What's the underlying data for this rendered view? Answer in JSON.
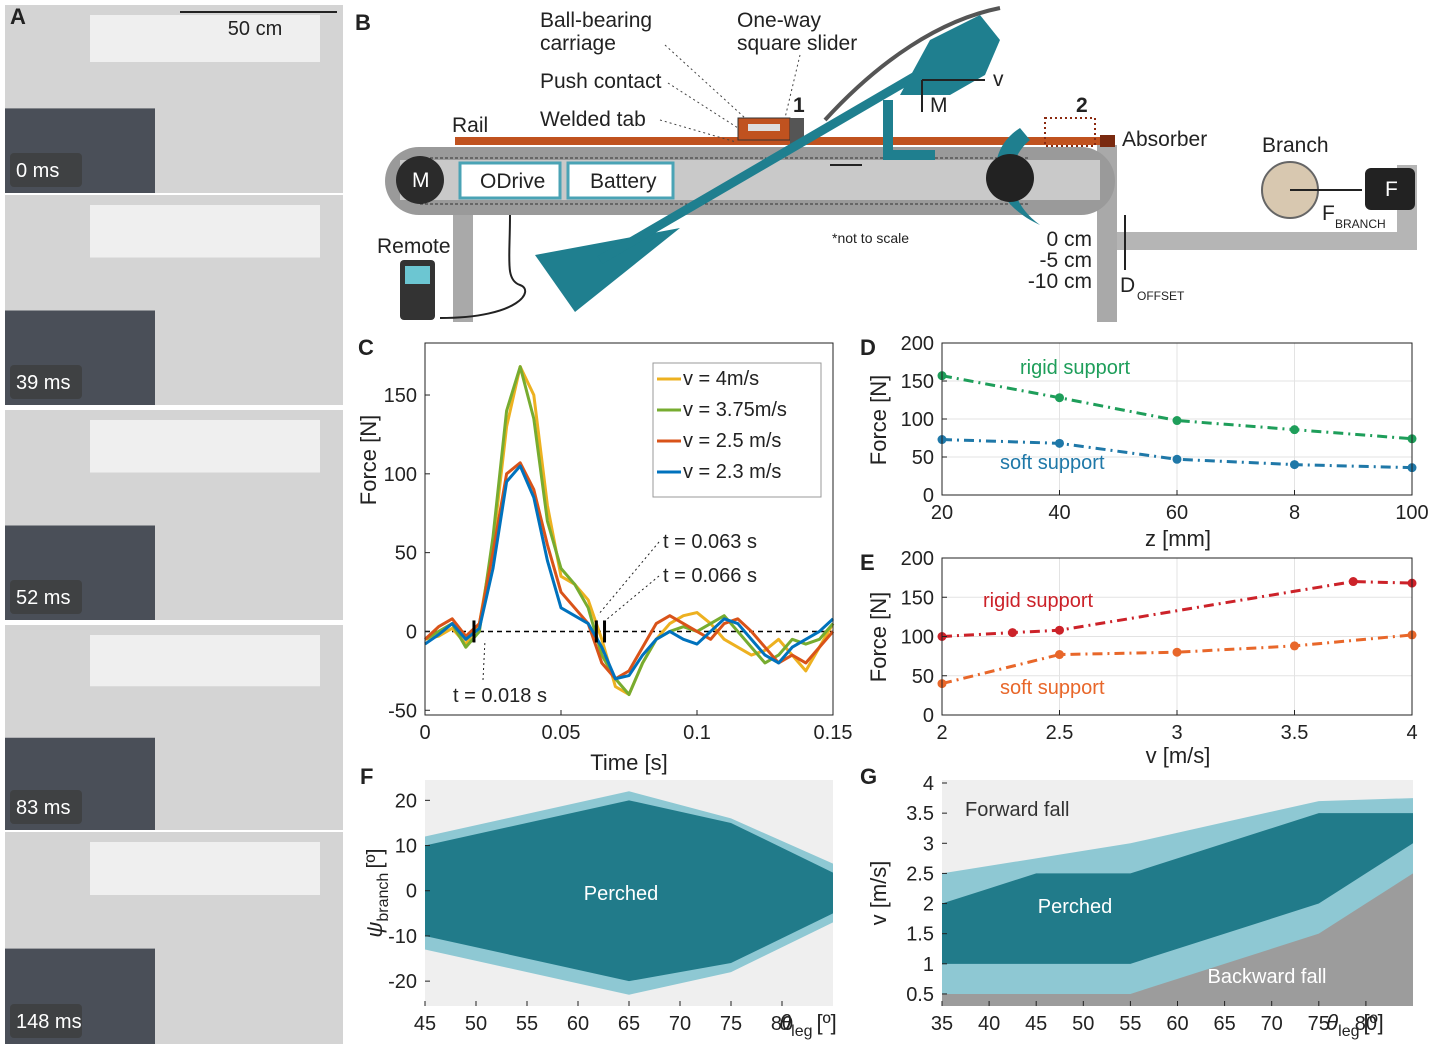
{
  "panel_labels": [
    "A",
    "B",
    "C",
    "D",
    "E",
    "F",
    "G"
  ],
  "photos": {
    "scale_bar": "50 cm",
    "frames": [
      "0 ms",
      "39 ms",
      "52 ms",
      "83 ms",
      "148 ms"
    ]
  },
  "diagram": {
    "ball_bearing": [
      "Ball-bearing",
      "carriage"
    ],
    "one_way": [
      "One-way",
      "square slider"
    ],
    "push_contact": "Push contact",
    "welded_tab": "Welded tab",
    "rail": "Rail",
    "position_1": "1",
    "position_2": "2",
    "velocity": "v",
    "moment": "M",
    "absorber": "Absorber",
    "branch": "Branch",
    "sensor": "F",
    "force": "F",
    "force_sub": "BRANCH",
    "motor": "M",
    "odrive": "ODrive",
    "battery": "Battery",
    "remote": "Remote",
    "note": "*not to scale",
    "offsets": [
      "0 cm",
      "-5 cm",
      "-10 cm"
    ],
    "offset": "D",
    "offset_sub": "OFFSET"
  },
  "chart_data": [
    {
      "type": "line",
      "xlabel": "Time [s]",
      "ylabel": "Force [N]",
      "xlim": [
        0,
        0.15
      ],
      "ylim": [
        -53,
        183
      ],
      "xticks": [
        0,
        0.05,
        0.1,
        0.15
      ],
      "yticks": [
        -50,
        0,
        50,
        100,
        150
      ],
      "grid": false,
      "box": true,
      "legend": "upper right",
      "hline": 0,
      "x": [
        0,
        0.005,
        0.01,
        0.015,
        0.02,
        0.025,
        0.03,
        0.035,
        0.04,
        0.045,
        0.05,
        0.055,
        0.06,
        0.065,
        0.07,
        0.075,
        0.08,
        0.085,
        0.09,
        0.095,
        0.1,
        0.105,
        0.11,
        0.115,
        0.12,
        0.125,
        0.13,
        0.135,
        0.14,
        0.145,
        0.15
      ],
      "series": [
        {
          "name": "v = 4m/s",
          "color": "#edb120",
          "values": [
            -5,
            -3,
            2,
            -8,
            5,
            55,
            130,
            168,
            150,
            80,
            35,
            30,
            20,
            -5,
            -35,
            -40,
            -20,
            -5,
            5,
            10,
            12,
            5,
            -5,
            -10,
            -15,
            -12,
            -5,
            -15,
            -25,
            -10,
            5
          ]
        },
        {
          "name": "v = 3.75m/s",
          "color": "#77ac30",
          "values": [
            -5,
            0,
            5,
            -10,
            0,
            60,
            140,
            168,
            135,
            70,
            40,
            30,
            15,
            -15,
            -30,
            -40,
            -20,
            -5,
            0,
            3,
            0,
            5,
            10,
            0,
            -10,
            -20,
            -15,
            -5,
            -8,
            -5,
            5
          ]
        },
        {
          "name": "v = 2.5 m/s",
          "color": "#d95319",
          "values": [
            -5,
            3,
            8,
            -3,
            5,
            50,
            100,
            107,
            90,
            55,
            25,
            15,
            5,
            -20,
            -30,
            -25,
            -10,
            5,
            10,
            5,
            0,
            -5,
            5,
            8,
            0,
            -10,
            -20,
            -15,
            -20,
            -10,
            0
          ]
        },
        {
          "name": "v = 2.3 m/s",
          "color": "#0072bd",
          "values": [
            -8,
            -2,
            5,
            -5,
            2,
            40,
            95,
            105,
            85,
            45,
            15,
            10,
            5,
            -10,
            -30,
            -28,
            -15,
            -5,
            0,
            -5,
            -8,
            0,
            8,
            5,
            -5,
            -15,
            -20,
            -10,
            -5,
            0,
            8
          ]
        }
      ],
      "annotations": [
        {
          "text": "t = 0.063 s",
          "x": 0.063
        },
        {
          "text": "t = 0.066 s",
          "x": 0.066
        },
        {
          "text": "t = 0.018 s",
          "x": 0.018
        }
      ]
    },
    {
      "type": "line",
      "xlabel": "z [mm]",
      "ylabel": "Force [N]",
      "xlim": [
        20,
        100
      ],
      "ylim": [
        0,
        200
      ],
      "xticks": [
        20,
        40,
        60,
        {
          "value": 80,
          "label": "8"
        },
        100
      ],
      "yticks": [
        0,
        50,
        100,
        150,
        200
      ],
      "grid": true,
      "box": true,
      "legend": "inline",
      "line_style": "dashdot",
      "markers": true,
      "series": [
        {
          "name": "rigid support",
          "color": "#1e9e5a",
          "x": [
            20,
            40,
            60,
            80,
            100
          ],
          "values": [
            157,
            128,
            98,
            86,
            74
          ]
        },
        {
          "name": "soft support",
          "color": "#1f78a8",
          "x": [
            20,
            40,
            60,
            80,
            100
          ],
          "values": [
            73,
            68,
            47,
            40,
            36
          ]
        }
      ]
    },
    {
      "type": "line",
      "xlabel": "v [m/s]",
      "ylabel": "Force [N]",
      "xlim": [
        2,
        4
      ],
      "ylim": [
        0,
        200
      ],
      "xticks": [
        2,
        2.5,
        3,
        3.5,
        4
      ],
      "yticks": [
        0,
        50,
        100,
        150,
        200
      ],
      "grid": true,
      "box": true,
      "legend": "inline",
      "line_style": "dashdot",
      "markers": true,
      "series": [
        {
          "name": "rigid support",
          "color": "#cc2229",
          "x": [
            2,
            2.3,
            2.5,
            3.75,
            4
          ],
          "values": [
            100,
            105,
            108,
            170,
            168
          ]
        },
        {
          "name": "soft support",
          "color": "#e8672a",
          "x": [
            2,
            2.5,
            3,
            3.5,
            4
          ],
          "values": [
            40,
            77,
            80,
            88,
            102
          ]
        }
      ]
    },
    {
      "type": "range_area",
      "xlabel": {
        "symbol": "θ",
        "sub": "leg",
        "unit": "[º]"
      },
      "ylabel": {
        "symbol": "ψ",
        "sub": "branch",
        "unit": "[º]"
      },
      "xlim": [
        45,
        85
      ],
      "ylim": [
        -25.5,
        24.5
      ],
      "xticks": [
        45,
        50,
        55,
        60,
        65,
        70,
        75,
        80
      ],
      "yticks": [
        -20,
        -10,
        0,
        10,
        20
      ],
      "grid": false,
      "box": false,
      "background": "#efefef",
      "x": [
        45,
        65,
        75,
        85
      ],
      "bands": [
        {
          "color": "#8ec8d3",
          "upper": [
            12,
            22,
            16,
            6
          ],
          "lower": [
            -13,
            -23,
            -18,
            -7
          ]
        },
        {
          "color": "#217b8a",
          "upper": [
            10,
            20,
            15,
            4
          ],
          "lower": [
            -10,
            -20,
            -16,
            -5
          ]
        }
      ],
      "region_labels": [
        "Perched"
      ]
    },
    {
      "type": "range_area",
      "xlabel": {
        "symbol": "θ",
        "sub": "leg",
        "unit": "[º]"
      },
      "ylabel": "v [m/s]",
      "xlim": [
        35,
        85
      ],
      "ylim": [
        0.3,
        4.05
      ],
      "xticks": [
        35,
        40,
        45,
        50,
        55,
        60,
        65,
        70,
        75,
        80
      ],
      "yticks": [
        0.5,
        1,
        1.5,
        2,
        2.5,
        3,
        3.5,
        4
      ],
      "grid": false,
      "box": false,
      "background": "#efefef",
      "bands": [
        {
          "color": "#8ec8d3",
          "x": [
            35,
            55,
            75,
            85
          ],
          "upper": [
            2.5,
            3,
            3.7,
            3.75
          ]
        },
        {
          "color": "#9c9c9c",
          "x": [
            35,
            55,
            75,
            80,
            85
          ],
          "upper": [
            0.5,
            0.5,
            1.5,
            2,
            2.5
          ]
        },
        {
          "color": "#217b8a",
          "x": [
            35,
            45,
            55,
            75,
            80,
            85
          ],
          "upper": [
            2,
            2.5,
            2.5,
            3.5,
            3.5,
            3.5
          ],
          "lower": [
            1,
            1,
            1,
            2,
            2.5,
            3
          ]
        }
      ],
      "region_labels": [
        "Forward fall",
        "Perched",
        "Backward fall"
      ]
    }
  ]
}
